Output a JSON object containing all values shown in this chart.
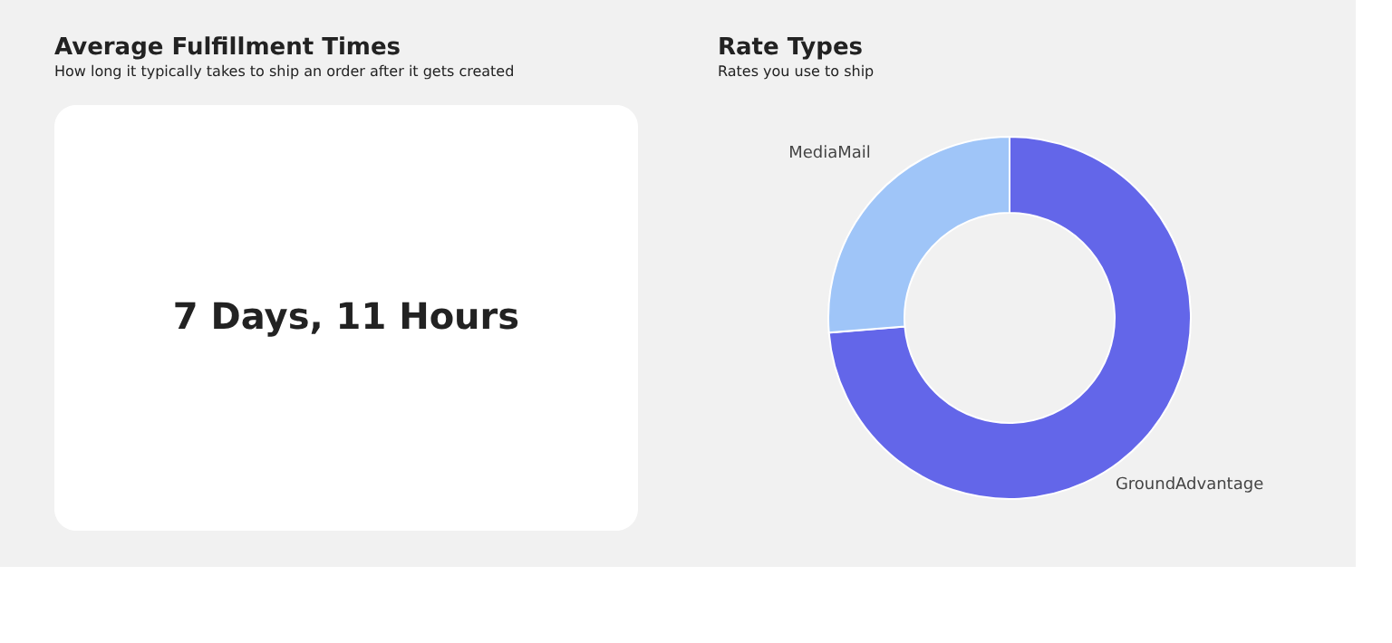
{
  "chart_data": [
    {
      "type": "other",
      "title": "Average Fulfillment Times",
      "subtitle": "How long it typically takes to ship an order after it gets created",
      "annotations": [
        "7 Days, 11 Hours"
      ]
    },
    {
      "type": "donut",
      "title": "Rate Types",
      "subtitle": "Rates you use to ship",
      "categories": [
        "GroundAdvantage",
        "MediaMail"
      ],
      "values": [
        73.7,
        26.3
      ],
      "colors": [
        "#6366e9",
        "#9fc5f8"
      ],
      "legend": false
    }
  ]
}
